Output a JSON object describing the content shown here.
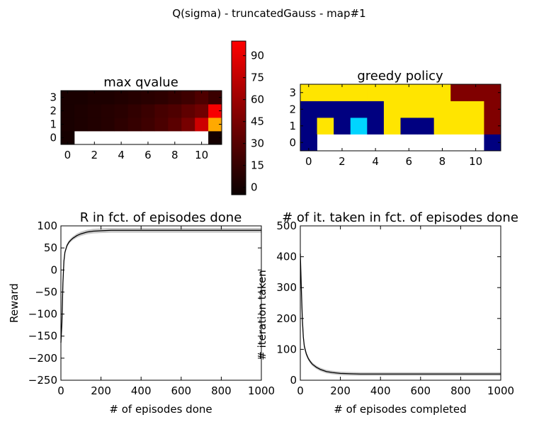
{
  "suptitle": "Q(sigma) - truncatedGauss - map#1",
  "chart_data": [
    {
      "type": "heatmap",
      "title": "max qvalue",
      "xlabel": "",
      "ylabel": "",
      "x_ticks": [
        "0",
        "2",
        "4",
        "6",
        "8",
        "10"
      ],
      "y_ticks": [
        "0",
        "1",
        "2",
        "3"
      ],
      "rows": 4,
      "cols": 12,
      "colormap": "hot",
      "colorbar": {
        "ticks": [
          "0",
          "15",
          "30",
          "45",
          "60",
          "75",
          "90"
        ],
        "vmin": -5,
        "vmax": 100
      },
      "values": [
        [
          0,
          null,
          null,
          null,
          null,
          null,
          null,
          null,
          null,
          null,
          null,
          0
        ],
        [
          1,
          2,
          3,
          4,
          6,
          8,
          10,
          13,
          17,
          24,
          45,
          100
        ],
        [
          1,
          2,
          3,
          4,
          5,
          7,
          9,
          12,
          14,
          18,
          22,
          55
        ],
        [
          1,
          1,
          2,
          2,
          3,
          4,
          5,
          6,
          8,
          10,
          14,
          9
        ]
      ]
    },
    {
      "type": "heatmap",
      "title": "greedy policy",
      "xlabel": "",
      "ylabel": "",
      "x_ticks": [
        "0",
        "2",
        "4",
        "6",
        "8",
        "10"
      ],
      "y_ticks": [
        "0",
        "1",
        "2",
        "3"
      ],
      "rows": 4,
      "cols": 12,
      "palette": {
        "0": "#000080",
        "1": "#00d4ff",
        "2": "#ffe500",
        "3": "#800000"
      },
      "values": [
        [
          0,
          null,
          null,
          null,
          null,
          null,
          null,
          null,
          null,
          null,
          null,
          0
        ],
        [
          0,
          2,
          0,
          1,
          0,
          2,
          0,
          0,
          2,
          2,
          2,
          3
        ],
        [
          0,
          0,
          0,
          0,
          0,
          2,
          2,
          2,
          2,
          2,
          2,
          3
        ],
        [
          2,
          2,
          2,
          2,
          2,
          2,
          2,
          2,
          2,
          3,
          3,
          3
        ]
      ]
    },
    {
      "type": "line",
      "title": "R in fct. of episodes done",
      "xlabel": "# of episodes done",
      "ylabel": "Reward",
      "xlim": [
        0,
        1000
      ],
      "ylim": [
        -250,
        100
      ],
      "x_ticks": [
        "0",
        "200",
        "400",
        "600",
        "800",
        "1000"
      ],
      "y_ticks": [
        "100",
        "50",
        "0",
        "−50",
        "−100",
        "−150",
        "−200",
        "−250"
      ],
      "series": [
        {
          "x": [
            0,
            5,
            10,
            15,
            20,
            30,
            40,
            50,
            60,
            80,
            100,
            130,
            160,
            200,
            250,
            300,
            400,
            500,
            600,
            700,
            800,
            900,
            1000
          ],
          "values": [
            -165,
            -120,
            -30,
            20,
            40,
            55,
            63,
            68,
            72,
            78,
            82,
            86,
            88,
            89,
            90,
            90,
            90,
            90,
            90,
            90,
            90,
            90,
            90
          ]
        }
      ]
    },
    {
      "type": "line",
      "title": "# of it. taken in fct. of episodes done",
      "xlabel": "# of episodes completed",
      "ylabel": "# iteration taken",
      "xlim": [
        0,
        1000
      ],
      "ylim": [
        0,
        500
      ],
      "x_ticks": [
        "0",
        "200",
        "400",
        "600",
        "800",
        "1000"
      ],
      "y_ticks": [
        "500",
        "400",
        "300",
        "200",
        "100",
        "0"
      ],
      "series": [
        {
          "x": [
            0,
            5,
            10,
            15,
            20,
            30,
            40,
            50,
            60,
            80,
            100,
            130,
            160,
            200,
            250,
            300,
            400,
            500,
            600,
            700,
            800,
            900,
            1000
          ],
          "values": [
            410,
            300,
            200,
            140,
            110,
            85,
            70,
            60,
            52,
            42,
            35,
            28,
            25,
            22,
            21,
            20,
            20,
            20,
            20,
            20,
            20,
            20,
            20
          ]
        }
      ]
    }
  ]
}
